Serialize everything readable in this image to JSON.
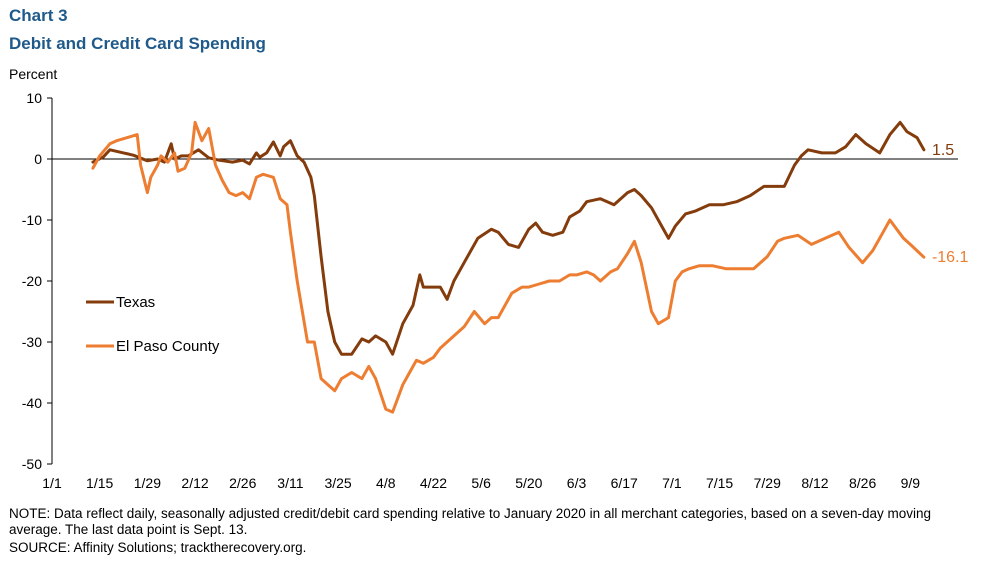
{
  "header": {
    "chart_number": "Chart 3",
    "title": "Debit and Credit Card Spending",
    "y_unit": "Percent"
  },
  "footer": {
    "note": "NOTE: Data reflect daily, seasonally adjusted credit/debit card spending relative to January 2020 in all merchant categories, based on a seven-day moving average.  The last data point is Sept. 13.",
    "source": "SOURCE: Affinity Solutions; tracktherecovery.org."
  },
  "colors": {
    "texas": "#843c0c",
    "el_paso": "#ed7d31"
  },
  "chart_data": {
    "type": "line",
    "title": "Debit and Credit Card Spending",
    "ylabel": "Percent",
    "xlabel": "",
    "ylim": [
      -50,
      10
    ],
    "yticks": [
      10,
      0,
      -10,
      -20,
      -30,
      -40,
      -50
    ],
    "x_domain": [
      "2020-01-01",
      "2020-09-23"
    ],
    "xtick_labels": [
      "1/1",
      "1/15",
      "1/29",
      "2/12",
      "2/26",
      "3/11",
      "3/25",
      "4/8",
      "4/22",
      "5/6",
      "5/20",
      "6/3",
      "6/17",
      "7/1",
      "7/15",
      "7/29",
      "8/12",
      "8/26",
      "9/9"
    ],
    "xtick_dates": [
      "2020-01-01",
      "2020-01-15",
      "2020-01-29",
      "2020-02-12",
      "2020-02-26",
      "2020-03-11",
      "2020-03-25",
      "2020-04-08",
      "2020-04-22",
      "2020-05-06",
      "2020-05-20",
      "2020-06-03",
      "2020-06-17",
      "2020-07-01",
      "2020-07-15",
      "2020-07-29",
      "2020-08-12",
      "2020-08-26",
      "2020-09-09"
    ],
    "grid": false,
    "legend": "left-center",
    "series": [
      {
        "name": "Texas",
        "end_label": "1.5",
        "x": [
          "2020-01-13",
          "2020-01-16",
          "2020-01-18",
          "2020-01-22",
          "2020-01-25",
          "2020-01-29",
          "2020-02-01",
          "2020-02-03",
          "2020-02-05",
          "2020-02-06",
          "2020-02-08",
          "2020-02-10",
          "2020-02-13",
          "2020-02-16",
          "2020-02-19",
          "2020-02-23",
          "2020-02-26",
          "2020-02-28",
          "2020-03-01",
          "2020-03-02",
          "2020-03-04",
          "2020-03-06",
          "2020-03-08",
          "2020-03-09",
          "2020-03-11",
          "2020-03-13",
          "2020-03-15",
          "2020-03-17",
          "2020-03-18",
          "2020-03-20",
          "2020-03-22",
          "2020-03-24",
          "2020-03-26",
          "2020-03-29",
          "2020-04-01",
          "2020-04-03",
          "2020-04-05",
          "2020-04-08",
          "2020-04-10",
          "2020-04-13",
          "2020-04-16",
          "2020-04-18",
          "2020-04-19",
          "2020-04-21",
          "2020-04-24",
          "2020-04-26",
          "2020-04-28",
          "2020-05-01",
          "2020-05-05",
          "2020-05-09",
          "2020-05-11",
          "2020-05-14",
          "2020-05-17",
          "2020-05-20",
          "2020-05-22",
          "2020-05-24",
          "2020-05-27",
          "2020-05-30",
          "2020-06-01",
          "2020-06-04",
          "2020-06-06",
          "2020-06-10",
          "2020-06-14",
          "2020-06-18",
          "2020-06-20",
          "2020-06-22",
          "2020-06-25",
          "2020-06-28",
          "2020-06-30",
          "2020-07-02",
          "2020-07-05",
          "2020-07-08",
          "2020-07-12",
          "2020-07-16",
          "2020-07-20",
          "2020-07-24",
          "2020-07-28",
          "2020-07-31",
          "2020-08-03",
          "2020-08-06",
          "2020-08-08",
          "2020-08-10",
          "2020-08-14",
          "2020-08-18",
          "2020-08-21",
          "2020-08-24",
          "2020-08-27",
          "2020-08-31",
          "2020-09-03",
          "2020-09-06",
          "2020-09-08",
          "2020-09-11",
          "2020-09-13"
        ],
        "y": [
          -0.5,
          0.3,
          1.5,
          1.0,
          0.6,
          -0.3,
          0.0,
          -0.5,
          2.5,
          0.0,
          0.5,
          0.5,
          1.5,
          0.2,
          -0.2,
          -0.5,
          -0.2,
          -0.8,
          1.0,
          0.3,
          1.0,
          2.8,
          0.5,
          2.0,
          3.0,
          0.5,
          -0.5,
          -3.0,
          -6.0,
          -16.0,
          -25.0,
          -30.0,
          -32.0,
          -32.0,
          -29.5,
          -30.0,
          -29.0,
          -30.0,
          -32.0,
          -27.0,
          -24.0,
          -19.0,
          -21.0,
          -21.0,
          -21.0,
          -23.0,
          -20.0,
          -17.0,
          -13.0,
          -11.5,
          -12.0,
          -14.0,
          -14.5,
          -11.5,
          -10.5,
          -12.0,
          -12.5,
          -12.0,
          -9.5,
          -8.5,
          -7.0,
          -6.5,
          -7.5,
          -5.5,
          -5.0,
          -6.0,
          -8.0,
          -11.0,
          -13.0,
          -11.0,
          -9.0,
          -8.5,
          -7.5,
          -7.5,
          -7.0,
          -6.0,
          -4.5,
          -4.5,
          -4.5,
          -1.0,
          0.5,
          1.5,
          1.0,
          1.0,
          2.0,
          4.0,
          2.5,
          1.0,
          4.0,
          6.0,
          4.5,
          3.5,
          1.5
        ]
      },
      {
        "name": "El Paso County",
        "end_label": "-16.1",
        "x": [
          "2020-01-13",
          "2020-01-15",
          "2020-01-18",
          "2020-01-20",
          "2020-01-23",
          "2020-01-26",
          "2020-01-27",
          "2020-01-29",
          "2020-01-30",
          "2020-02-01",
          "2020-02-02",
          "2020-02-04",
          "2020-02-06",
          "2020-02-07",
          "2020-02-09",
          "2020-02-11",
          "2020-02-12",
          "2020-02-14",
          "2020-02-16",
          "2020-02-18",
          "2020-02-20",
          "2020-02-22",
          "2020-02-24",
          "2020-02-26",
          "2020-02-28",
          "2020-03-01",
          "2020-03-03",
          "2020-03-06",
          "2020-03-08",
          "2020-03-10",
          "2020-03-11",
          "2020-03-13",
          "2020-03-16",
          "2020-03-18",
          "2020-03-20",
          "2020-03-22",
          "2020-03-24",
          "2020-03-26",
          "2020-03-29",
          "2020-04-01",
          "2020-04-03",
          "2020-04-05",
          "2020-04-08",
          "2020-04-10",
          "2020-04-13",
          "2020-04-15",
          "2020-04-17",
          "2020-04-19",
          "2020-04-22",
          "2020-04-24",
          "2020-04-26",
          "2020-04-28",
          "2020-05-01",
          "2020-05-04",
          "2020-05-07",
          "2020-05-09",
          "2020-05-11",
          "2020-05-15",
          "2020-05-18",
          "2020-05-20",
          "2020-05-23",
          "2020-05-26",
          "2020-05-29",
          "2020-06-01",
          "2020-06-03",
          "2020-06-06",
          "2020-06-08",
          "2020-06-10",
          "2020-06-13",
          "2020-06-15",
          "2020-06-18",
          "2020-06-20",
          "2020-06-22",
          "2020-06-25",
          "2020-06-27",
          "2020-06-30",
          "2020-07-02",
          "2020-07-04",
          "2020-07-06",
          "2020-07-09",
          "2020-07-13",
          "2020-07-17",
          "2020-07-21",
          "2020-07-25",
          "2020-07-29",
          "2020-08-01",
          "2020-08-03",
          "2020-08-07",
          "2020-08-11",
          "2020-08-15",
          "2020-08-19",
          "2020-08-22",
          "2020-08-26",
          "2020-08-29",
          "2020-09-01",
          "2020-09-03",
          "2020-09-05",
          "2020-09-07",
          "2020-09-09",
          "2020-09-13"
        ],
        "y": [
          -1.5,
          0.5,
          2.5,
          3.0,
          3.5,
          4.0,
          -1.0,
          -5.5,
          -3.0,
          -1.0,
          0.5,
          -0.5,
          1.0,
          -2.0,
          -1.5,
          1.0,
          6.0,
          3.0,
          5.0,
          -1.0,
          -3.5,
          -5.5,
          -6.0,
          -5.5,
          -6.5,
          -3.0,
          -2.5,
          -3.0,
          -6.5,
          -7.5,
          -12.0,
          -20.0,
          -30.0,
          -30.0,
          -36.0,
          -37.0,
          -38.0,
          -36.0,
          -35.0,
          -36.0,
          -34.0,
          -36.0,
          -41.0,
          -41.5,
          -37.0,
          -35.0,
          -33.0,
          -33.5,
          -32.5,
          -31.0,
          -30.0,
          -29.0,
          -27.5,
          -25.0,
          -27.0,
          -26.0,
          -26.0,
          -22.0,
          -21.0,
          -21.0,
          -20.5,
          -20.0,
          -20.0,
          -19.0,
          -19.0,
          -18.5,
          -19.0,
          -20.0,
          -18.5,
          -18.0,
          -15.5,
          -13.5,
          -17.0,
          -25.0,
          -27.0,
          -26.0,
          -20.0,
          -18.5,
          -18.0,
          -17.5,
          -17.5,
          -18.0,
          -18.0,
          -18.0,
          -16.0,
          -13.5,
          -13.0,
          -12.5,
          -14.0,
          -13.0,
          -12.0,
          -14.5,
          -17.0,
          -15.0,
          -12.0,
          -10.0,
          -11.5,
          -13.0,
          -14.0,
          -16.1
        ]
      }
    ]
  }
}
